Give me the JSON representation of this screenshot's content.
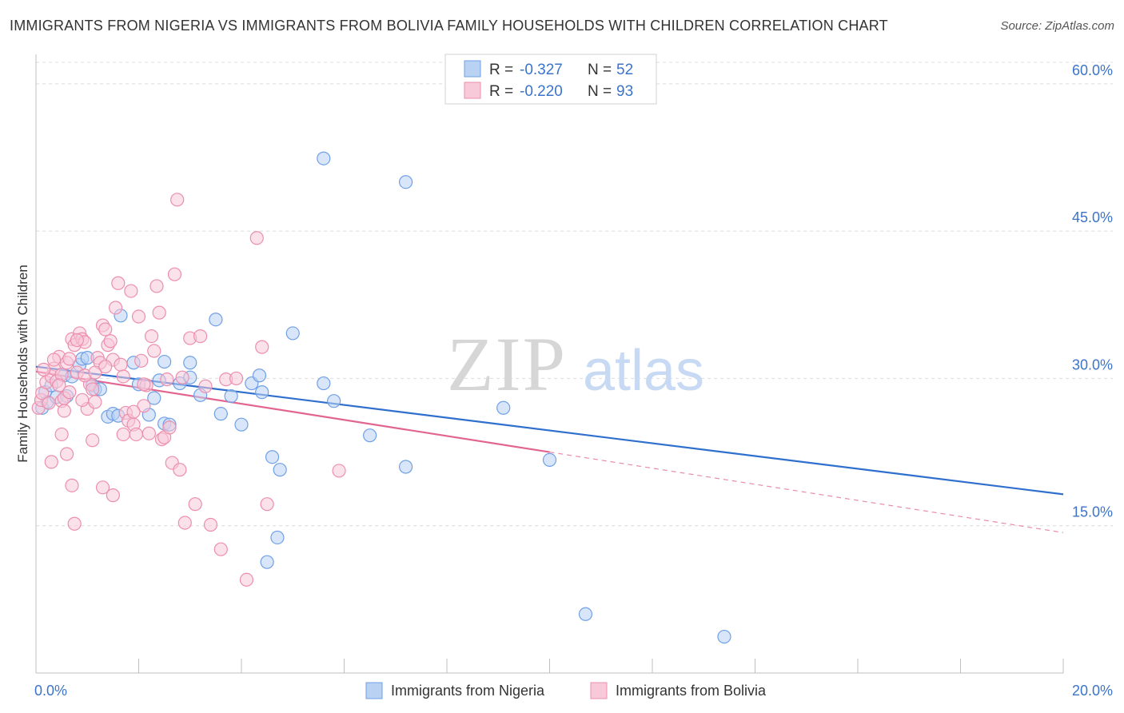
{
  "chart_data": {
    "type": "scatter",
    "title": "IMMIGRANTS FROM NIGERIA VS IMMIGRANTS FROM BOLIVIA FAMILY HOUSEHOLDS WITH CHILDREN CORRELATION CHART",
    "source": "Source: ZipAtlas.com",
    "xlabel": "",
    "ylabel": "Family Households with Children",
    "xlim": [
      0,
      20
    ],
    "ylim": [
      0,
      63
    ],
    "x_tick_labels": [
      {
        "value": 0,
        "label": "0.0%"
      },
      {
        "value": 20,
        "label": "20.0%"
      }
    ],
    "y_tick_labels": [
      {
        "value": 15,
        "label": "15.0%"
      },
      {
        "value": 30,
        "label": "30.0%"
      },
      {
        "value": 45,
        "label": "45.0%"
      },
      {
        "value": 60,
        "label": "60.0%"
      }
    ],
    "watermark": {
      "zip": "ZIP",
      "atlas": "atlas"
    },
    "legend": [
      {
        "series": "Immigrants from Nigeria",
        "r_label": "R =",
        "r_value": "-0.327",
        "n_label": "N =",
        "n_value": "52"
      },
      {
        "series": "Immigrants from Bolivia",
        "r_label": "R =",
        "r_value": "-0.220",
        "n_label": "N =",
        "n_value": "93"
      }
    ],
    "series": [
      {
        "name": "Immigrants from Nigeria",
        "color": "#6fa0e6",
        "fill": "#b9d2f4",
        "line_color": "#2f6fce",
        "trend": {
          "x0": 0,
          "y0": 31.2,
          "x1": 20,
          "y1": 18.2,
          "solid_until": 20
        },
        "points": [
          [
            0.12,
            27.0
          ],
          [
            0.22,
            27.6
          ],
          [
            0.18,
            28.6
          ],
          [
            0.3,
            29.3
          ],
          [
            0.4,
            28.1
          ],
          [
            0.55,
            30.3
          ],
          [
            0.6,
            28.2
          ],
          [
            0.7,
            30.2
          ],
          [
            0.85,
            31.4
          ],
          [
            0.9,
            32.0
          ],
          [
            1.0,
            32.1
          ],
          [
            1.1,
            29.3
          ],
          [
            1.15,
            28.9
          ],
          [
            1.25,
            28.9
          ],
          [
            1.4,
            26.1
          ],
          [
            1.5,
            26.4
          ],
          [
            1.6,
            26.2
          ],
          [
            1.65,
            36.4
          ],
          [
            1.9,
            31.6
          ],
          [
            2.0,
            29.4
          ],
          [
            2.2,
            26.3
          ],
          [
            2.3,
            28.0
          ],
          [
            2.4,
            29.8
          ],
          [
            2.5,
            25.4
          ],
          [
            2.6,
            25.3
          ],
          [
            2.8,
            29.5
          ],
          [
            3.0,
            31.6
          ],
          [
            3.0,
            30.1
          ],
          [
            3.2,
            28.3
          ],
          [
            3.5,
            36.0
          ],
          [
            3.6,
            26.4
          ],
          [
            3.8,
            28.2
          ],
          [
            4.0,
            25.3
          ],
          [
            4.2,
            29.5
          ],
          [
            4.35,
            30.3
          ],
          [
            4.4,
            28.6
          ],
          [
            4.6,
            22.0
          ],
          [
            4.75,
            20.7
          ],
          [
            4.7,
            13.8
          ],
          [
            4.5,
            11.3
          ],
          [
            5.0,
            34.6
          ],
          [
            5.6,
            29.5
          ],
          [
            5.8,
            27.7
          ],
          [
            5.6,
            52.4
          ],
          [
            6.5,
            24.2
          ],
          [
            7.2,
            21.0
          ],
          [
            7.2,
            50.0
          ],
          [
            9.1,
            27.0
          ],
          [
            10.0,
            21.7
          ],
          [
            10.7,
            6.0
          ],
          [
            13.4,
            3.7
          ],
          [
            2.5,
            31.7
          ]
        ]
      },
      {
        "name": "Immigrants from Bolivia",
        "color": "#ec8fad",
        "fill": "#f8c9d8",
        "line_color": "#e2658f",
        "trend": {
          "x0": 0,
          "y0": 30.7,
          "x1": 20,
          "y1": 14.3,
          "solid_until": 10
        },
        "points": [
          [
            0.05,
            27.0
          ],
          [
            0.1,
            27.8
          ],
          [
            0.12,
            28.5
          ],
          [
            0.2,
            29.6
          ],
          [
            0.25,
            27.5
          ],
          [
            0.3,
            30.2
          ],
          [
            0.35,
            31.0
          ],
          [
            0.4,
            29.7
          ],
          [
            0.45,
            32.2
          ],
          [
            0.5,
            27.7
          ],
          [
            0.5,
            30.4
          ],
          [
            0.55,
            28.0
          ],
          [
            0.6,
            31.6
          ],
          [
            0.65,
            32.0
          ],
          [
            0.7,
            34.0
          ],
          [
            0.75,
            33.4
          ],
          [
            0.8,
            30.6
          ],
          [
            0.85,
            34.6
          ],
          [
            0.9,
            34.0
          ],
          [
            0.95,
            33.7
          ],
          [
            1.0,
            26.9
          ],
          [
            1.05,
            29.4
          ],
          [
            1.1,
            28.9
          ],
          [
            1.15,
            27.6
          ],
          [
            1.2,
            32.1
          ],
          [
            1.25,
            31.6
          ],
          [
            1.3,
            35.4
          ],
          [
            1.35,
            35.0
          ],
          [
            1.4,
            33.4
          ],
          [
            1.45,
            33.8
          ],
          [
            1.5,
            31.9
          ],
          [
            1.55,
            37.2
          ],
          [
            1.6,
            39.7
          ],
          [
            1.65,
            31.4
          ],
          [
            1.7,
            30.2
          ],
          [
            1.75,
            26.5
          ],
          [
            1.8,
            25.7
          ],
          [
            1.85,
            38.9
          ],
          [
            1.9,
            25.3
          ],
          [
            1.95,
            24.3
          ],
          [
            2.0,
            36.3
          ],
          [
            2.05,
            31.8
          ],
          [
            2.1,
            27.2
          ],
          [
            2.15,
            29.3
          ],
          [
            2.2,
            24.4
          ],
          [
            2.25,
            34.3
          ],
          [
            2.3,
            32.8
          ],
          [
            2.35,
            39.4
          ],
          [
            2.4,
            36.7
          ],
          [
            2.45,
            23.8
          ],
          [
            2.5,
            24.0
          ],
          [
            2.55,
            29.9
          ],
          [
            2.6,
            25.0
          ],
          [
            2.65,
            21.4
          ],
          [
            2.7,
            40.6
          ],
          [
            2.75,
            48.2
          ],
          [
            2.8,
            20.7
          ],
          [
            2.85,
            30.1
          ],
          [
            2.9,
            15.3
          ],
          [
            3.0,
            34.1
          ],
          [
            3.1,
            17.2
          ],
          [
            3.2,
            34.3
          ],
          [
            3.3,
            29.2
          ],
          [
            3.4,
            15.1
          ],
          [
            3.6,
            12.6
          ],
          [
            3.7,
            29.9
          ],
          [
            3.9,
            30.0
          ],
          [
            4.1,
            9.5
          ],
          [
            4.3,
            44.3
          ],
          [
            4.4,
            33.2
          ],
          [
            4.5,
            17.2
          ],
          [
            5.9,
            20.6
          ],
          [
            0.3,
            21.5
          ],
          [
            0.5,
            24.3
          ],
          [
            0.6,
            22.3
          ],
          [
            0.7,
            19.1
          ],
          [
            0.75,
            15.2
          ],
          [
            0.9,
            27.8
          ],
          [
            1.1,
            23.7
          ],
          [
            1.3,
            18.9
          ],
          [
            1.5,
            18.1
          ],
          [
            1.7,
            24.3
          ],
          [
            1.9,
            26.6
          ],
          [
            2.1,
            29.4
          ],
          [
            0.15,
            30.9
          ],
          [
            0.35,
            31.9
          ],
          [
            0.45,
            29.3
          ],
          [
            0.55,
            26.7
          ],
          [
            0.65,
            28.6
          ],
          [
            0.8,
            33.9
          ],
          [
            0.95,
            30.3
          ],
          [
            1.15,
            30.6
          ],
          [
            1.35,
            31.2
          ]
        ]
      }
    ]
  }
}
